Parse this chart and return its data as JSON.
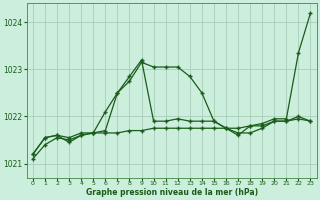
{
  "title": "Graphe pression niveau de la mer (hPa)",
  "bg_color": "#cceedd",
  "grid_color": "#aaccbb",
  "line_color": "#1a5c1a",
  "xlim": [
    -0.5,
    23.5
  ],
  "ylim": [
    1020.7,
    1024.4
  ],
  "yticks": [
    1021,
    1022,
    1023,
    1024
  ],
  "xticks": [
    0,
    1,
    2,
    3,
    4,
    5,
    6,
    7,
    8,
    9,
    10,
    11,
    12,
    13,
    14,
    15,
    16,
    17,
    18,
    19,
    20,
    21,
    22,
    23
  ],
  "series": [
    {
      "x": [
        0,
        1,
        2,
        3,
        4,
        5,
        6,
        7,
        8,
        9,
        10,
        11,
        12,
        13,
        14,
        15,
        16,
        17,
        18,
        19,
        20,
        21,
        22,
        23
      ],
      "y": [
        1021.2,
        1021.55,
        1021.6,
        1021.55,
        1021.65,
        1021.65,
        1021.65,
        1021.65,
        1021.7,
        1021.7,
        1021.75,
        1021.75,
        1021.75,
        1021.75,
        1021.75,
        1021.75,
        1021.75,
        1021.75,
        1021.8,
        1021.8,
        1021.9,
        1021.9,
        1022.0,
        1021.9
      ]
    },
    {
      "x": [
        0,
        1,
        2,
        3,
        4,
        5,
        6,
        7,
        8,
        9,
        10,
        11,
        12,
        13,
        14,
        15,
        16,
        17,
        18,
        19,
        20,
        21,
        22,
        23
      ],
      "y": [
        1021.2,
        1021.55,
        1021.6,
        1021.45,
        1021.6,
        1021.65,
        1021.7,
        1022.5,
        1022.75,
        1023.15,
        1023.05,
        1023.05,
        1023.05,
        1022.85,
        1022.5,
        1021.9,
        1021.75,
        1021.65,
        1021.65,
        1021.75,
        1021.9,
        1021.9,
        1021.95,
        1021.9
      ]
    },
    {
      "x": [
        0,
        1,
        2,
        3,
        4,
        5,
        6,
        7,
        8,
        9,
        10,
        11,
        12,
        13,
        14,
        15,
        16,
        17,
        18,
        19,
        20,
        21,
        22,
        23
      ],
      "y": [
        1021.1,
        1021.4,
        1021.55,
        1021.5,
        1021.6,
        1021.65,
        1022.1,
        1022.5,
        1022.85,
        1023.2,
        1021.9,
        1021.9,
        1021.95,
        1021.9,
        1021.9,
        1021.9,
        1021.75,
        1021.6,
        1021.8,
        1021.85,
        1021.95,
        1021.95,
        1023.35,
        1024.2
      ]
    }
  ]
}
